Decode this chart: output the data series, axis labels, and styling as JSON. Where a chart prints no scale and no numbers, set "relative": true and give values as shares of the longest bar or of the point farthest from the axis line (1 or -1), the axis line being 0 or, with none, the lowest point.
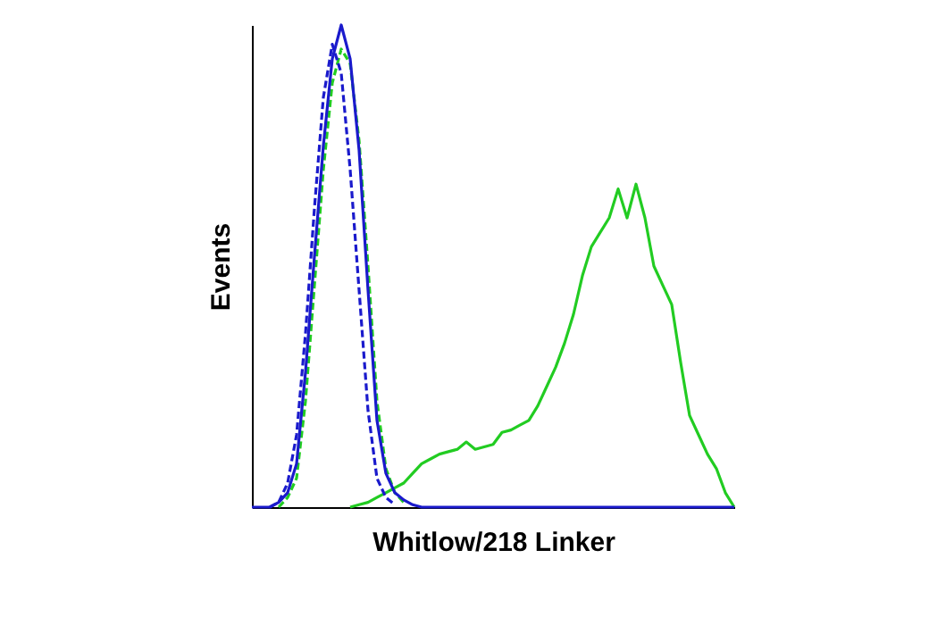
{
  "chart_data": {
    "type": "line",
    "relative": true,
    "xlabel": "Whitlow/218 Linker",
    "ylabel": "Events",
    "marker": "none",
    "categories": [
      null,
      null,
      null,
      null,
      null,
      null,
      null,
      null,
      null,
      null,
      null,
      null,
      null,
      null,
      null,
      null,
      null,
      null,
      null,
      null,
      null,
      null,
      null,
      null,
      null,
      null,
      null,
      null,
      null,
      null,
      null,
      null,
      null,
      null,
      null,
      null,
      null,
      null,
      null,
      null,
      null,
      null,
      null,
      null,
      null,
      null,
      null,
      null,
      null,
      null,
      null,
      null,
      null,
      null,
      null
    ],
    "series": [
      {
        "color": "#22cc22",
        "line_style": "solid",
        "values": [
          null,
          null,
          null,
          null,
          null,
          null,
          null,
          null,
          null,
          null,
          null,
          0,
          0.005,
          0.01,
          0.02,
          0.03,
          0.04,
          0.05,
          0.07,
          0.09,
          0.1,
          0.11,
          0.115,
          0.12,
          0.135,
          0.12,
          0.125,
          0.13,
          0.155,
          0.16,
          0.17,
          0.18,
          0.21,
          0.25,
          0.29,
          0.34,
          0.4,
          0.48,
          0.54,
          0.57,
          0.6,
          0.66,
          0.6,
          0.67,
          0.6,
          0.5,
          0.46,
          0.42,
          0.3,
          0.19,
          0.15,
          0.11,
          0.08,
          0.03,
          0
        ]
      },
      {
        "color": "#22cc22",
        "line_style": "dashed",
        "values": [
          null,
          null,
          null,
          0,
          0.02,
          0.06,
          0.22,
          0.46,
          0.7,
          0.88,
          0.95,
          0.92,
          0.76,
          0.5,
          0.22,
          0.08,
          0.03,
          0.01,
          null,
          null,
          null,
          null,
          null,
          null,
          null,
          null,
          null,
          null,
          null,
          null,
          null,
          null,
          null,
          null,
          null,
          null,
          null,
          null,
          null,
          null,
          null,
          null,
          null,
          null,
          null,
          null,
          null,
          null,
          null,
          null,
          null,
          null,
          null,
          null,
          null
        ]
      },
      {
        "color": "#1a1acc",
        "line_style": "dashed",
        "values": [
          null,
          null,
          0,
          0.01,
          0.05,
          0.15,
          0.36,
          0.62,
          0.85,
          0.96,
          0.9,
          0.7,
          0.45,
          0.2,
          0.06,
          0.02,
          0.005,
          null,
          null,
          null,
          null,
          null,
          null,
          null,
          null,
          null,
          null,
          null,
          null,
          null,
          null,
          null,
          null,
          null,
          null,
          null,
          null,
          null,
          null,
          null,
          null,
          null,
          null,
          null,
          null,
          null,
          null,
          null,
          null,
          null,
          null,
          null,
          null,
          null,
          null
        ]
      },
      {
        "color": "#1a1acc",
        "line_style": "solid",
        "values": [
          0,
          0,
          0,
          0.01,
          0.03,
          0.09,
          0.28,
          0.52,
          0.75,
          0.93,
          1.0,
          0.93,
          0.74,
          0.45,
          0.18,
          0.07,
          0.03,
          0.015,
          0.005,
          0,
          0,
          0,
          0,
          0,
          0,
          0,
          0,
          0,
          0,
          0,
          0,
          0,
          0,
          0,
          0,
          0,
          0,
          0,
          0,
          0,
          0,
          0,
          0,
          0,
          0,
          0,
          0,
          0,
          0,
          0,
          0,
          0,
          0,
          0,
          0
        ]
      }
    ]
  }
}
